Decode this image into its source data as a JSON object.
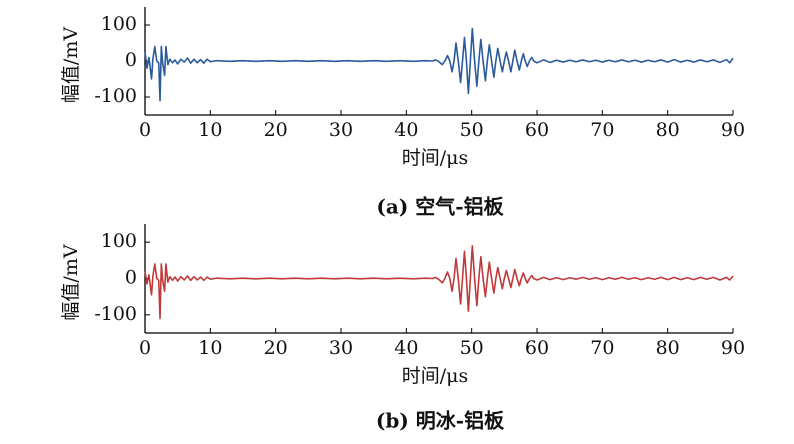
{
  "chart_data": [
    {
      "type": "line",
      "caption": "(a) 空气-铝板",
      "xlabel": "时间/μs",
      "ylabel": "幅值/mV",
      "color": "#2b5a9c",
      "xlim": [
        0,
        90
      ],
      "ylim": [
        -150,
        150
      ],
      "xticks": [
        0,
        10,
        20,
        30,
        40,
        50,
        60,
        70,
        80,
        90
      ],
      "yticks": [
        -100,
        0,
        100
      ],
      "x": [
        0,
        0.3,
        0.6,
        1,
        1.2,
        1.5,
        1.8,
        2.1,
        2.3,
        2.5,
        2.7,
        3,
        3.2,
        3.5,
        3.8,
        4.2,
        4.6,
        5,
        5.5,
        6,
        6.5,
        7,
        7.5,
        8,
        8.5,
        9,
        9.5,
        10,
        11,
        13,
        15,
        17,
        19,
        21,
        23,
        25,
        27,
        29,
        31,
        33,
        35,
        37,
        39,
        41,
        43,
        44,
        44.5,
        45,
        45.5,
        45.9,
        46.3,
        46.65,
        47,
        47.3,
        47.6,
        47.95,
        48.3,
        48.6,
        48.9,
        49.2,
        49.5,
        49.8,
        50.1,
        50.45,
        50.8,
        51.1,
        51.4,
        51.75,
        52.1,
        52.4,
        52.7,
        53.05,
        53.4,
        53.7,
        54,
        54.35,
        54.7,
        55,
        55.3,
        55.65,
        56,
        56.3,
        56.6,
        56.95,
        57.3,
        57.6,
        57.9,
        58.2,
        58.5,
        58.85,
        59.2,
        59.5,
        60,
        61,
        62,
        63,
        64,
        65,
        66,
        67,
        68,
        69,
        70,
        71,
        72,
        73,
        74,
        75,
        76,
        77,
        78,
        79,
        80,
        81,
        82,
        83,
        84,
        85,
        86,
        87,
        88,
        89,
        89.5,
        90
      ],
      "values": [
        25,
        -20,
        10,
        -50,
        5,
        40,
        0,
        -5,
        -110,
        40,
        -5,
        -40,
        40,
        -10,
        5,
        -5,
        3,
        -8,
        5,
        -3,
        8,
        -6,
        5,
        -5,
        4,
        -6,
        5,
        -2,
        1,
        -1,
        1,
        -1,
        1,
        -1,
        1,
        -1,
        1,
        -1,
        1,
        -1,
        1,
        -1,
        1,
        -1,
        1,
        0,
        3,
        -2,
        -10,
        0,
        15,
        0,
        -30,
        0,
        50,
        0,
        -60,
        0,
        65,
        0,
        -90,
        0,
        90,
        0,
        -70,
        0,
        60,
        0,
        -55,
        0,
        45,
        0,
        -45,
        0,
        35,
        0,
        -30,
        0,
        25,
        0,
        -30,
        0,
        30,
        0,
        -25,
        0,
        20,
        0,
        -15,
        0,
        10,
        0,
        -5,
        3,
        -4,
        2,
        -3,
        2,
        -2,
        3,
        -2,
        2,
        -3,
        2,
        -2,
        3,
        -2,
        2,
        -3,
        2,
        -2,
        3,
        -3,
        4,
        -3,
        2,
        -3,
        3,
        -2,
        3,
        -4,
        4,
        -5,
        8
      ]
    },
    {
      "type": "line",
      "caption": "(b) 明冰-铝板",
      "xlabel": "时间/μs",
      "ylabel": "幅值/mV",
      "color": "#c03a3a",
      "xlim": [
        0,
        90
      ],
      "ylim": [
        -150,
        150
      ],
      "xticks": [
        0,
        10,
        20,
        30,
        40,
        50,
        60,
        70,
        80,
        90
      ],
      "yticks": [
        -100,
        0,
        100
      ],
      "x": [
        0,
        0.3,
        0.6,
        1,
        1.2,
        1.5,
        1.8,
        2.1,
        2.3,
        2.5,
        2.7,
        3,
        3.2,
        3.5,
        3.8,
        4.2,
        4.6,
        5,
        5.5,
        6,
        6.5,
        7,
        7.5,
        8,
        8.5,
        9,
        9.5,
        10,
        11,
        13,
        15,
        17,
        19,
        21,
        23,
        25,
        27,
        29,
        31,
        33,
        35,
        37,
        39,
        41,
        43,
        44,
        44.5,
        45,
        45.5,
        45.9,
        46.3,
        46.65,
        47,
        47.3,
        47.6,
        47.95,
        48.3,
        48.6,
        48.9,
        49.2,
        49.5,
        49.8,
        50.1,
        50.45,
        50.8,
        51.1,
        51.4,
        51.75,
        52.1,
        52.4,
        52.7,
        53.05,
        53.4,
        53.7,
        54,
        54.35,
        54.7,
        55,
        55.3,
        55.65,
        56,
        56.3,
        56.6,
        56.95,
        57.3,
        57.6,
        57.9,
        58.2,
        58.5,
        58.85,
        59.2,
        59.5,
        60,
        61,
        62,
        63,
        64,
        65,
        66,
        67,
        68,
        69,
        70,
        71,
        72,
        73,
        74,
        75,
        76,
        77,
        78,
        79,
        80,
        81,
        82,
        83,
        84,
        85,
        86,
        87,
        88,
        89,
        89.5,
        90
      ],
      "values": [
        20,
        -15,
        10,
        -45,
        5,
        40,
        0,
        -5,
        -110,
        40,
        -5,
        -35,
        40,
        -10,
        5,
        -5,
        4,
        -7,
        5,
        -4,
        7,
        -5,
        5,
        -4,
        4,
        -5,
        4,
        -2,
        1,
        -1,
        1,
        -1,
        1,
        -1,
        1,
        -1,
        1,
        -1,
        1,
        -1,
        1,
        -1,
        1,
        -1,
        1,
        0,
        3,
        -3,
        -12,
        0,
        18,
        0,
        -35,
        0,
        55,
        0,
        -70,
        0,
        75,
        0,
        -90,
        0,
        90,
        0,
        -75,
        0,
        60,
        0,
        -50,
        0,
        45,
        0,
        -40,
        0,
        30,
        0,
        -28,
        0,
        22,
        0,
        -25,
        0,
        25,
        0,
        -20,
        0,
        15,
        0,
        -12,
        0,
        8,
        0,
        -4,
        3,
        -3,
        2,
        -3,
        2,
        -2,
        3,
        -2,
        2,
        -3,
        2,
        -2,
        3,
        -2,
        2,
        -3,
        2,
        -2,
        3,
        -3,
        3,
        -3,
        2,
        -3,
        3,
        -2,
        3,
        -4,
        3,
        -4,
        7
      ]
    }
  ]
}
